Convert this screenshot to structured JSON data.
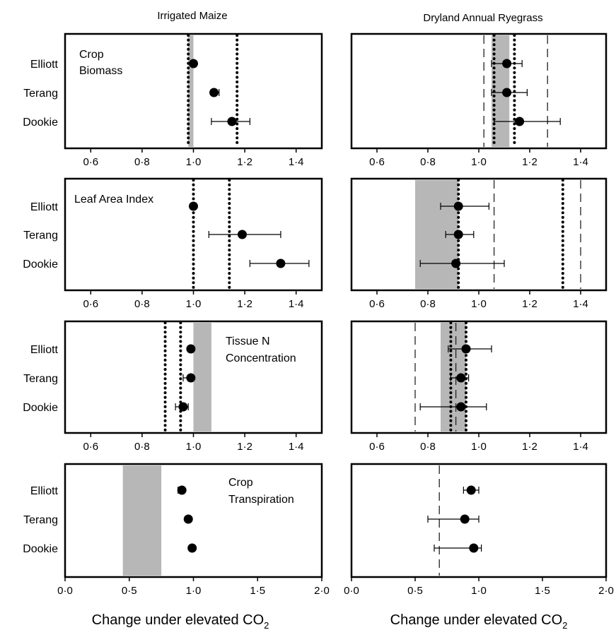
{
  "figure": {
    "column_titles": [
      "Irrigated Maize",
      "Dryland Annual Ryegrass"
    ],
    "xlabel": "Change under elevated CO",
    "xlabel_subscript": "2",
    "sites": [
      "Elliott",
      "Terang",
      "Dookie"
    ]
  },
  "chart_data": [
    {
      "type": "scatter",
      "panel": "Crop Biomass",
      "column": "Irrigated Maize",
      "annotation": [
        "Crop",
        "Biomass"
      ],
      "xlim": [
        0.5,
        1.5
      ],
      "xticks": [
        0.6,
        0.8,
        1.0,
        1.2,
        1.4
      ],
      "xtick_labels": [
        "0·6",
        "0·8",
        "1·0",
        "1·2",
        "1·4"
      ],
      "categories": [
        "Elliott",
        "Terang",
        "Dookie"
      ],
      "points": [
        {
          "site": "Elliott",
          "value": 1.0,
          "err_low": 1.0,
          "err_high": 1.0
        },
        {
          "site": "Terang",
          "value": 1.08,
          "err_low": 1.07,
          "err_high": 1.1
        },
        {
          "site": "Dookie",
          "value": 1.15,
          "err_low": 1.07,
          "err_high": 1.22
        }
      ],
      "shaded_range": [
        0.98,
        1.0
      ],
      "dotted_lines": [
        0.98,
        1.17
      ],
      "dashed_lines": []
    },
    {
      "type": "scatter",
      "panel": "Crop Biomass",
      "column": "Dryland Annual Ryegrass",
      "annotation": [],
      "xlim": [
        0.5,
        1.5
      ],
      "xticks": [
        0.6,
        0.8,
        1.0,
        1.2,
        1.4
      ],
      "xtick_labels": [
        "0·6",
        "0·8",
        "1·0",
        "1·2",
        "1·4"
      ],
      "categories": [
        "Elliott",
        "Terang",
        "Dookie"
      ],
      "points": [
        {
          "site": "Elliott",
          "value": 1.11,
          "err_low": 1.05,
          "err_high": 1.17
        },
        {
          "site": "Terang",
          "value": 1.11,
          "err_low": 1.05,
          "err_high": 1.19
        },
        {
          "site": "Dookie",
          "value": 1.16,
          "err_low": 1.06,
          "err_high": 1.32
        }
      ],
      "shaded_range": [
        1.05,
        1.12
      ],
      "dotted_lines": [
        1.06,
        1.14
      ],
      "dashed_lines": [
        1.02,
        1.27
      ]
    },
    {
      "type": "scatter",
      "panel": "Leaf Area Index",
      "column": "Irrigated Maize",
      "annotation": [
        "Leaf Area Index"
      ],
      "xlim": [
        0.5,
        1.5
      ],
      "xticks": [
        0.6,
        0.8,
        1.0,
        1.2,
        1.4
      ],
      "xtick_labels": [
        "0·6",
        "0·8",
        "1·0",
        "1·2",
        "1·4"
      ],
      "categories": [
        "Elliott",
        "Terang",
        "Dookie"
      ],
      "points": [
        {
          "site": "Elliott",
          "value": 1.0,
          "err_low": 1.0,
          "err_high": 1.0
        },
        {
          "site": "Terang",
          "value": 1.19,
          "err_low": 1.06,
          "err_high": 1.34
        },
        {
          "site": "Dookie",
          "value": 1.34,
          "err_low": 1.22,
          "err_high": 1.45
        }
      ],
      "shaded_range": null,
      "dotted_lines": [
        1.0,
        1.14
      ],
      "dashed_lines": []
    },
    {
      "type": "scatter",
      "panel": "Leaf Area Index",
      "column": "Dryland Annual Ryegrass",
      "annotation": [],
      "xlim": [
        0.5,
        1.5
      ],
      "xticks": [
        0.6,
        0.8,
        1.0,
        1.2,
        1.4
      ],
      "xtick_labels": [
        "0·6",
        "0·8",
        "1·0",
        "1·2",
        "1·4"
      ],
      "categories": [
        "Elliott",
        "Terang",
        "Dookie"
      ],
      "points": [
        {
          "site": "Elliott",
          "value": 0.92,
          "err_low": 0.85,
          "err_high": 1.04
        },
        {
          "site": "Terang",
          "value": 0.92,
          "err_low": 0.87,
          "err_high": 0.98
        },
        {
          "site": "Dookie",
          "value": 0.91,
          "err_low": 0.77,
          "err_high": 1.1
        }
      ],
      "shaded_range": [
        0.75,
        0.92
      ],
      "dotted_lines": [
        0.92,
        1.33
      ],
      "dashed_lines": [
        1.06,
        1.4
      ]
    },
    {
      "type": "scatter",
      "panel": "Tissue N Concentration",
      "column": "Irrigated Maize",
      "annotation": [
        "Tissue N",
        "Concentration"
      ],
      "xlim": [
        0.5,
        1.5
      ],
      "xticks": [
        0.6,
        0.8,
        1.0,
        1.2,
        1.4
      ],
      "xtick_labels": [
        "0·6",
        "0·8",
        "1·0",
        "1·2",
        "1·4"
      ],
      "categories": [
        "Elliott",
        "Terang",
        "Dookie"
      ],
      "points": [
        {
          "site": "Elliott",
          "value": 0.99,
          "err_low": 0.99,
          "err_high": 0.99
        },
        {
          "site": "Terang",
          "value": 0.99,
          "err_low": 0.96,
          "err_high": 1.0
        },
        {
          "site": "Dookie",
          "value": 0.96,
          "err_low": 0.93,
          "err_high": 0.98
        }
      ],
      "shaded_range": [
        1.0,
        1.07
      ],
      "dotted_lines": [
        0.89,
        0.95
      ],
      "dashed_lines": []
    },
    {
      "type": "scatter",
      "panel": "Tissue N Concentration",
      "column": "Dryland Annual Ryegrass",
      "annotation": [],
      "xlim": [
        0.5,
        1.5
      ],
      "xticks": [
        0.6,
        0.8,
        1.0,
        1.2,
        1.4
      ],
      "xtick_labels": [
        "0·6",
        "0·8",
        "1·0",
        "1·2",
        "1·4"
      ],
      "categories": [
        "Elliott",
        "Terang",
        "Dookie"
      ],
      "points": [
        {
          "site": "Elliott",
          "value": 0.95,
          "err_low": 0.88,
          "err_high": 1.05
        },
        {
          "site": "Terang",
          "value": 0.93,
          "err_low": 0.89,
          "err_high": 0.96
        },
        {
          "site": "Dookie",
          "value": 0.93,
          "err_low": 0.77,
          "err_high": 1.03
        }
      ],
      "shaded_range": [
        0.85,
        0.95
      ],
      "dotted_lines": [
        0.89,
        0.95
      ],
      "dashed_lines": [
        0.75,
        0.91
      ]
    },
    {
      "type": "scatter",
      "panel": "Crop Transpiration",
      "column": "Irrigated Maize",
      "annotation": [
        "Crop",
        "Transpiration"
      ],
      "xlim": [
        0.0,
        2.0
      ],
      "xticks": [
        0.0,
        0.5,
        1.0,
        1.5,
        2.0
      ],
      "xtick_labels": [
        "0·0",
        "0·5",
        "1·0",
        "1·5",
        "2·0"
      ],
      "categories": [
        "Elliott",
        "Terang",
        "Dookie"
      ],
      "points": [
        {
          "site": "Elliott",
          "value": 0.91,
          "err_low": 0.88,
          "err_high": 0.93
        },
        {
          "site": "Terang",
          "value": 0.96,
          "err_low": 0.94,
          "err_high": 0.98
        },
        {
          "site": "Dookie",
          "value": 0.99,
          "err_low": 0.97,
          "err_high": 1.0
        }
      ],
      "shaded_range": [
        0.45,
        0.75
      ],
      "dotted_lines": [],
      "dashed_lines": []
    },
    {
      "type": "scatter",
      "panel": "Crop Transpiration",
      "column": "Dryland Annual Ryegrass",
      "annotation": [],
      "xlim": [
        0.0,
        2.0
      ],
      "xticks": [
        0.0,
        0.5,
        1.0,
        1.5,
        2.0
      ],
      "xtick_labels": [
        "0·0",
        "0·5",
        "1·0",
        "1·5",
        "2·0"
      ],
      "categories": [
        "Elliott",
        "Terang",
        "Dookie"
      ],
      "points": [
        {
          "site": "Elliott",
          "value": 0.94,
          "err_low": 0.88,
          "err_high": 1.0
        },
        {
          "site": "Terang",
          "value": 0.89,
          "err_low": 0.6,
          "err_high": 1.0
        },
        {
          "site": "Dookie",
          "value": 0.96,
          "err_low": 0.65,
          "err_high": 1.02
        }
      ],
      "shaded_range": null,
      "dotted_lines": [],
      "dashed_lines": [
        0.69
      ]
    }
  ]
}
